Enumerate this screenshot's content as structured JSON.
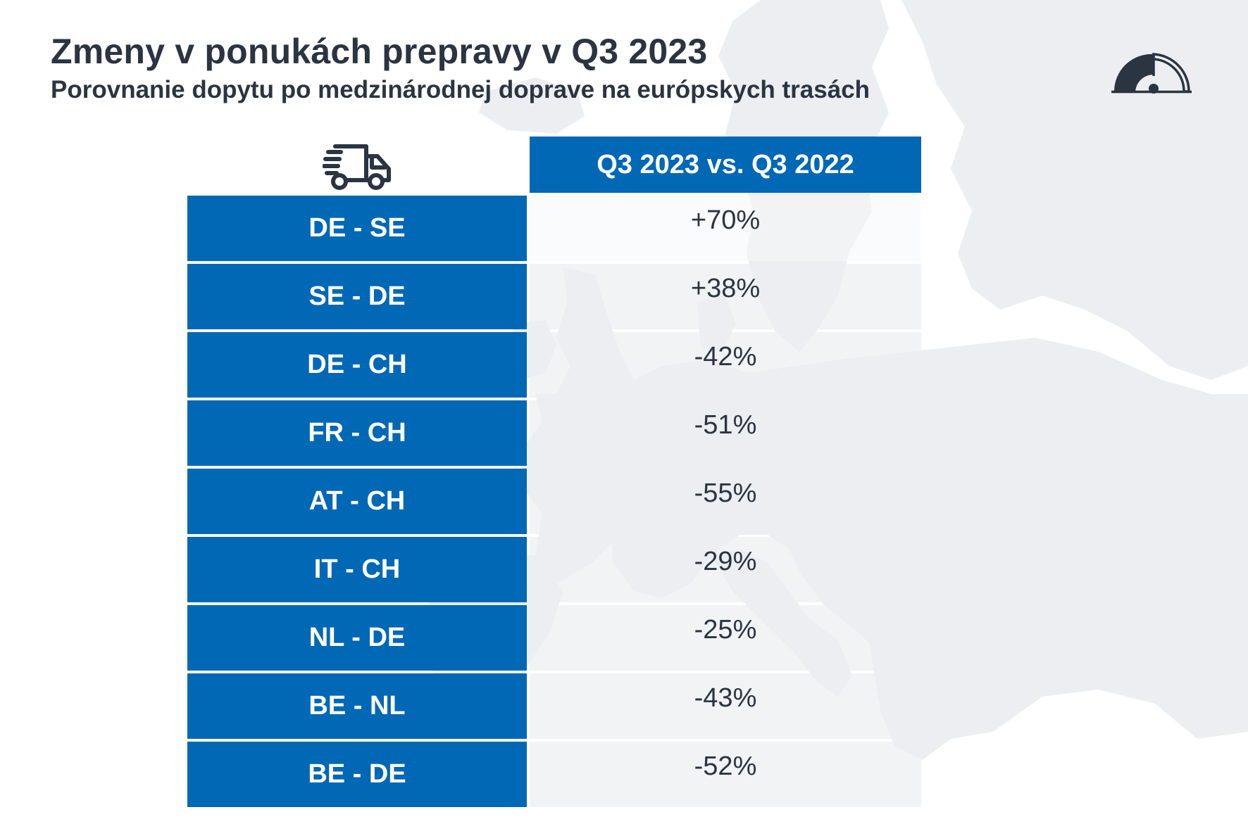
{
  "header": {
    "title": "Zmeny v ponukách prepravy v Q3 2023",
    "subtitle": "Porovnanie dopytu po medzinárodnej doprave na európskych trasách"
  },
  "icons": {
    "logo": "gauge-logo-icon",
    "column": "delivery-truck-icon"
  },
  "colors": {
    "accent": "#0068b4",
    "text": "#2b3441",
    "map": "#eceef1"
  },
  "chart_data": {
    "type": "table",
    "title": "Zmeny v ponukách prepravy v Q3 2023",
    "subtitle": "Porovnanie dopytu po medzinárodnej doprave na európskych trasách",
    "column_header": "Q3 2023 vs. Q3 2022",
    "rows": [
      {
        "route": "DE - SE",
        "value": "+70%"
      },
      {
        "route": "SE - DE",
        "value": "+38%"
      },
      {
        "route": "DE - CH",
        "value": "-42%"
      },
      {
        "route": "FR - CH",
        "value": "-51%"
      },
      {
        "route": "AT - CH",
        "value": "-55%"
      },
      {
        "route": "IT - CH",
        "value": "-29%"
      },
      {
        "route": "NL - DE",
        "value": "-25%"
      },
      {
        "route": "BE - NL",
        "value": "-43%"
      },
      {
        "route": "BE - DE",
        "value": "-52%"
      }
    ]
  }
}
